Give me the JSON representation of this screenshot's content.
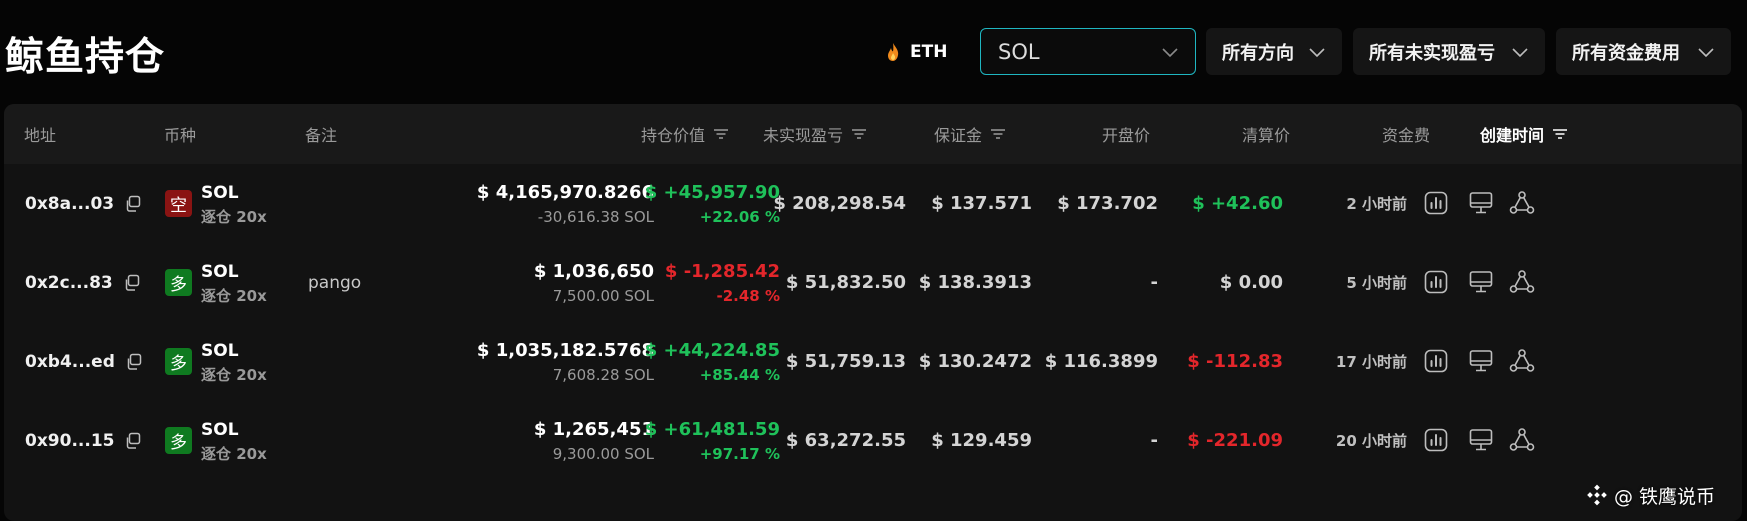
{
  "header": {
    "title": "鲸鱼持仓",
    "eth_label": "ETH",
    "filters": {
      "coin": "SOL",
      "direction": "所有方向",
      "unrealized": "所有未实现盈亏",
      "funding": "所有资金费用"
    }
  },
  "table": {
    "columns": {
      "address": "地址",
      "coin": "币种",
      "note": "备注",
      "value": "持仓价值",
      "unrealized": "未实现盈亏",
      "margin": "保证金",
      "entry": "开盘价",
      "liq": "清算价",
      "funding": "资金费",
      "created": "创建时间"
    },
    "rows": [
      {
        "address": "0x8a...03",
        "side": "空",
        "side_type": "short",
        "coin": "SOL",
        "mode": "逐仓 20x",
        "note": "",
        "value": "$ 4,165,970.8266",
        "size": "-30,616.38 SOL",
        "pnl": "$ +45,957.90",
        "pnl_pct": "+22.06 %",
        "pnl_color": "green",
        "margin": "$ 208,298.54",
        "entry": "$ 137.571",
        "liq": "$ 173.702",
        "funding": "$ +42.60",
        "funding_color": "green",
        "created": "2 小时前"
      },
      {
        "address": "0x2c...83",
        "side": "多",
        "side_type": "long",
        "coin": "SOL",
        "mode": "逐仓 20x",
        "note": "pango",
        "value": "$ 1,036,650",
        "size": "7,500.00 SOL",
        "pnl": "$ -1,285.42",
        "pnl_pct": "-2.48 %",
        "pnl_color": "red",
        "margin": "$ 51,832.50",
        "entry": "$ 138.3913",
        "liq": "-",
        "funding": "$ 0.00",
        "funding_color": "neutral",
        "created": "5 小时前"
      },
      {
        "address": "0xb4...ed",
        "side": "多",
        "side_type": "long",
        "coin": "SOL",
        "mode": "逐仓 20x",
        "note": "",
        "value": "$ 1,035,182.5768",
        "size": "7,608.28 SOL",
        "pnl": "$ +44,224.85",
        "pnl_pct": "+85.44 %",
        "pnl_color": "green",
        "margin": "$ 51,759.13",
        "entry": "$ 130.2472",
        "liq": "$ 116.3899",
        "funding": "$ -112.83",
        "funding_color": "red",
        "created": "17 小时前"
      },
      {
        "address": "0x90...15",
        "side": "多",
        "side_type": "long",
        "coin": "SOL",
        "mode": "逐仓 20x",
        "note": "",
        "value": "$ 1,265,451",
        "size": "9,300.00 SOL",
        "pnl": "$ +61,481.59",
        "pnl_pct": "+97.17 %",
        "pnl_color": "green",
        "margin": "$ 63,272.55",
        "entry": "$ 129.459",
        "liq": "-",
        "funding": "$ -221.09",
        "funding_color": "red",
        "created": "20 小时前"
      }
    ]
  },
  "watermark": "@ 铁鹰说币",
  "colors": {
    "accent": "#1fb6c1",
    "positive": "#1fc15a",
    "negative": "#e3262b",
    "short_badge": "#8a1413",
    "long_badge": "#0f7a20"
  },
  "icons": [
    "flame-icon",
    "chevron-down-icon",
    "sort-icon",
    "copy-icon",
    "chart-icon",
    "monitor-icon",
    "share-nodes-icon",
    "binance-logo-icon"
  ]
}
